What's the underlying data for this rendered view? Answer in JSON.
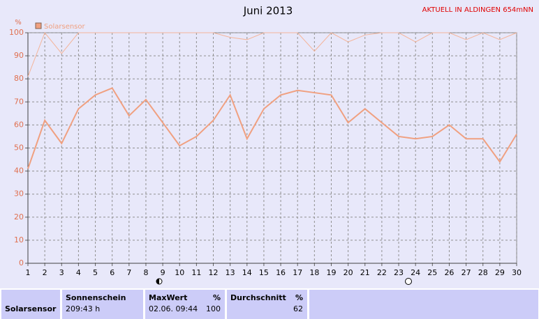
{
  "chart_data": {
    "type": "line",
    "title": "Juni 2013",
    "annotation": "AKTUELL IN ALDINGEN 654mNN",
    "y_label": "%",
    "x": [
      1,
      2,
      3,
      4,
      5,
      6,
      7,
      8,
      9,
      10,
      11,
      12,
      13,
      14,
      15,
      16,
      17,
      18,
      19,
      20,
      21,
      22,
      23,
      24,
      25,
      26,
      27,
      28,
      29,
      30
    ],
    "series": [
      {
        "name": "Solarsensor",
        "color": "#f0a080",
        "values": [
          41,
          62,
          52,
          67,
          73,
          76,
          64,
          71,
          61,
          51,
          55,
          62,
          73,
          54,
          67,
          73,
          75,
          74,
          73,
          61,
          67,
          61,
          55,
          54,
          55,
          60,
          54,
          54,
          44,
          56
        ]
      },
      {
        "color": "#f4b49a",
        "values": [
          81,
          100,
          91,
          100,
          100,
          100,
          100,
          100,
          100,
          100,
          100,
          100,
          98,
          97,
          100,
          100,
          100,
          92,
          100,
          96,
          99,
          100,
          100,
          96,
          100,
          100,
          97,
          100,
          97,
          100
        ]
      }
    ],
    "xlim": [
      1,
      30
    ],
    "xticks": [
      1,
      2,
      3,
      4,
      5,
      6,
      7,
      8,
      9,
      10,
      11,
      12,
      13,
      14,
      15,
      16,
      17,
      18,
      19,
      20,
      21,
      22,
      23,
      24,
      25,
      26,
      27,
      28,
      29,
      30
    ],
    "ylim": [
      0,
      100
    ],
    "yticks": [
      0,
      10,
      20,
      30,
      40,
      50,
      60,
      70,
      80,
      90,
      100
    ],
    "grid": true
  },
  "summary": {
    "row_label": "Solarsensor",
    "sunshine_header": "Sonnenschein",
    "sunshine_value": "209:43 h",
    "max_header": "MaxWert",
    "max_unit": "%",
    "max_time": "02.06.  09:44",
    "max_value": "100",
    "avg_header": "Durchschnitt",
    "avg_unit": "%",
    "avg_value": "62"
  }
}
